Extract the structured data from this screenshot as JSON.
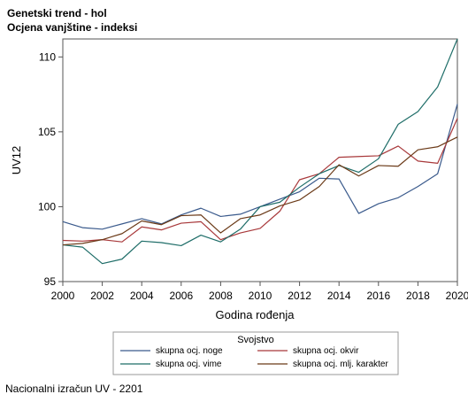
{
  "header": {
    "title": "Genetski trend - hol",
    "subtitle": "Ocjena vanjštine - indeksi"
  },
  "footer": {
    "note": "Nacionalni izračun UV - 2201"
  },
  "chart_data": {
    "type": "line",
    "title": "Genetski trend - hol",
    "subtitle": "Ocjena vanjštine - indeksi",
    "xlabel": "Godina rođenja",
    "ylabel": "UV12",
    "xlim": [
      2000,
      2020
    ],
    "ylim": [
      95,
      111.2
    ],
    "xticks": [
      2000,
      2002,
      2004,
      2006,
      2008,
      2010,
      2012,
      2014,
      2016,
      2018,
      2020
    ],
    "yticks": [
      95,
      100,
      105,
      110
    ],
    "grid": false,
    "legend": {
      "title": "Svojstvo",
      "placement": "bottom"
    },
    "x": [
      2000,
      2001,
      2002,
      2003,
      2004,
      2005,
      2006,
      2007,
      2008,
      2009,
      2010,
      2011,
      2012,
      2013,
      2014,
      2015,
      2016,
      2017,
      2018,
      2019,
      2020
    ],
    "series": [
      {
        "name": "skupna ocj. noge",
        "color": "#3a5a8c",
        "values": [
          99.0,
          98.6,
          98.5,
          98.85,
          99.2,
          98.85,
          99.45,
          99.9,
          99.35,
          99.5,
          100.0,
          100.5,
          101.0,
          101.9,
          101.85,
          99.55,
          100.2,
          100.6,
          101.35,
          102.2,
          106.85
        ]
      },
      {
        "name": "skupna ocj. okvir",
        "color": "#a8383a",
        "values": [
          97.75,
          97.7,
          97.8,
          97.65,
          98.65,
          98.45,
          98.9,
          99.0,
          97.8,
          98.25,
          98.55,
          99.7,
          101.8,
          102.2,
          103.3,
          103.35,
          103.4,
          104.05,
          103.05,
          102.9,
          105.9
        ]
      },
      {
        "name": "skupna ocj. vime",
        "color": "#1e6d68",
        "values": [
          97.45,
          97.3,
          96.2,
          96.5,
          97.7,
          97.6,
          97.4,
          98.1,
          97.65,
          98.5,
          100.0,
          100.3,
          101.3,
          102.2,
          102.75,
          102.3,
          103.2,
          105.5,
          106.35,
          108.0,
          111.2
        ]
      },
      {
        "name": "skupna ocj. mlj. karakter",
        "color": "#6b3a18",
        "values": [
          97.45,
          97.55,
          97.8,
          98.2,
          99.05,
          98.8,
          99.4,
          99.45,
          98.25,
          99.2,
          99.45,
          100.05,
          100.45,
          101.35,
          102.8,
          102.05,
          102.75,
          102.7,
          103.8,
          104.0,
          104.65
        ]
      }
    ]
  }
}
